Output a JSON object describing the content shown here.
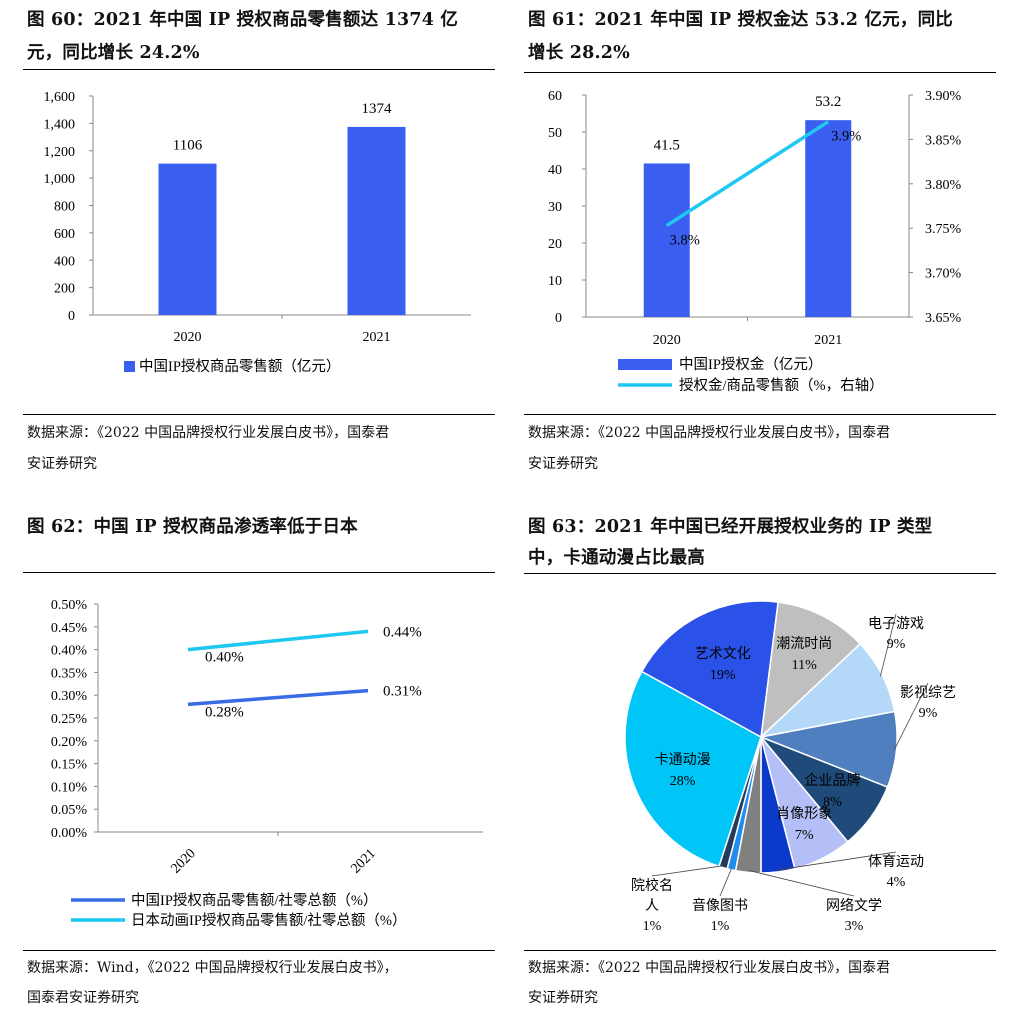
{
  "panels": [
    {
      "fig_line1": "图 60：2021 年中国 IP 授权商品零售额达 1374 亿",
      "fig_line2": "元，同比增长 24.2%",
      "source_line1": "数据来源：《2022 中国品牌授权行业发展白皮书》，国泰君",
      "source_line2": "安证券研究"
    },
    {
      "fig_line1": "图 61：2021 年中国 IP 授权金达 53.2 亿元，同比",
      "fig_line2": "增长 28.2%",
      "source_line1": "数据来源：《2022 中国品牌授权行业发展白皮书》，国泰君",
      "source_line2": "安证券研究"
    },
    {
      "fig_line1": "图 62：中国 IP 授权商品渗透率低于日本",
      "fig_line2": "",
      "source_line1": "数据来源：Wind，《2022 中国品牌授权行业发展白皮书》，",
      "source_line2": "国泰君安证券研究"
    },
    {
      "fig_line1": "图 63：2021 年中国已经开展授权业务的 IP 类型",
      "fig_line2": "中，卡通动漫占比最高",
      "source_line1": "数据来源：《2022 中国品牌授权行业发展白皮书》，国泰君",
      "source_line2": "安证券研究"
    }
  ],
  "chart_data": [
    {
      "type": "bar",
      "categories": [
        "2020",
        "2021"
      ],
      "series": [
        {
          "name": "中国IP授权商品零售额（亿元）",
          "values": [
            1106,
            1374
          ],
          "color": "#3a5ff0"
        }
      ],
      "data_labels": [
        "1106",
        "1374"
      ],
      "y_ticks": [
        "0",
        "200",
        "400",
        "600",
        "800",
        "1,000",
        "1,200",
        "1,400",
        "1,600"
      ],
      "ylim": [
        0,
        1600
      ],
      "grid": false,
      "legend": "bottom"
    },
    {
      "type": "bar+line",
      "categories": [
        "2020",
        "2021"
      ],
      "series": [
        {
          "name": "中国IP授权金（亿元）",
          "type": "bar",
          "axis": "left",
          "values": [
            41.5,
            53.2
          ],
          "color": "#3a5ff0"
        },
        {
          "name": "授权金/商品零售额（%，右轴）",
          "type": "line",
          "axis": "right",
          "values": [
            3.753,
            3.87
          ],
          "color": "#1ec8f0"
        }
      ],
      "bar_labels": [
        "41.5",
        "53.2"
      ],
      "line_labels": [
        "3.8%",
        "3.9%"
      ],
      "y_ticks": [
        "0",
        "10",
        "20",
        "30",
        "40",
        "50",
        "60"
      ],
      "ylim": [
        0,
        60
      ],
      "y2_ticks": [
        "3.65%",
        "3.70%",
        "3.75%",
        "3.80%",
        "3.85%",
        "3.90%"
      ],
      "y2lim": [
        3.65,
        3.9
      ],
      "grid": false,
      "legend": "bottom"
    },
    {
      "type": "line",
      "categories": [
        "2020",
        "2021"
      ],
      "series": [
        {
          "name": "中国IP授权商品零售额/社零总额（%）",
          "values": [
            0.28,
            0.31
          ],
          "labels": [
            "0.28%",
            "0.31%"
          ],
          "color": "#3a6be6"
        },
        {
          "name": "日本动画IP授权商品零售额/社零总额（%）",
          "values": [
            0.4,
            0.44
          ],
          "labels": [
            "0.40%",
            "0.44%"
          ],
          "color": "#1ec8f0"
        }
      ],
      "y_ticks": [
        "0.00%",
        "0.05%",
        "0.10%",
        "0.15%",
        "0.20%",
        "0.25%",
        "0.30%",
        "0.35%",
        "0.40%",
        "0.45%",
        "0.50%"
      ],
      "ylim": [
        0,
        0.5
      ],
      "grid": false,
      "legend": "bottom"
    },
    {
      "type": "pie",
      "slices": [
        {
          "name": "潮流时尚",
          "value": 11,
          "label": "11%",
          "color": "#bfbfbf"
        },
        {
          "name": "电子游戏",
          "value": 9,
          "label": "9%",
          "color": "#b4d8f8"
        },
        {
          "name": "影视综艺",
          "value": 9,
          "label": "9%",
          "color": "#4f7fbf"
        },
        {
          "name": "企业品牌",
          "value": 8,
          "label": "8%",
          "color": "#1f4a7a"
        },
        {
          "name": "肖像形象",
          "value": 7,
          "label": "7%",
          "color": "#b3bff6"
        },
        {
          "name": "体育运动",
          "value": 4,
          "label": "4%",
          "color": "#0b3acb"
        },
        {
          "name": "网络文学",
          "value": 3,
          "label": "3%",
          "color": "#808080"
        },
        {
          "name": "音像图书",
          "value": 1,
          "label": "1%",
          "color": "#1e8cf0"
        },
        {
          "name": "院校名人",
          "value": 1,
          "label": "1%",
          "color": "#243a5c"
        },
        {
          "name": "卡通动漫",
          "value": 28,
          "label": "28%",
          "color": "#00c5f7"
        },
        {
          "name": "艺术文化",
          "value": 19,
          "label": "19%",
          "color": "#2a52e8"
        }
      ]
    }
  ]
}
